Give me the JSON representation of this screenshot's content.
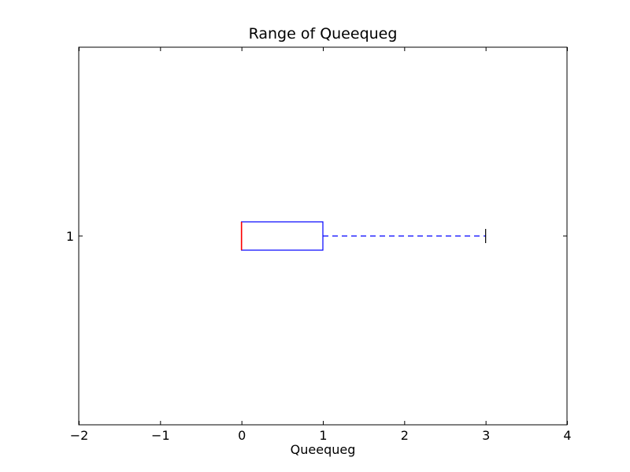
{
  "chart_data": {
    "type": "boxplot",
    "orientation": "horizontal",
    "title": "Range of Queequeg",
    "xlabel": "Queequeg",
    "ylabel": "",
    "xlim": [
      -2,
      4
    ],
    "x_ticks": [
      -2,
      -1,
      0,
      1,
      2,
      3,
      4
    ],
    "x_tick_labels": [
      "−2",
      "−1",
      "0",
      "1",
      "2",
      "3",
      "4"
    ],
    "y_tick_labels": [
      "1"
    ],
    "grid": false,
    "series": [
      {
        "category": "1",
        "min": 0,
        "q1": 0,
        "median": 0,
        "q3": 1,
        "max": 3
      }
    ],
    "colors": {
      "box": "#0000ff",
      "whisker": "#0000ff",
      "median": "#ff0000",
      "cap": "#000000",
      "axes": "#000000"
    }
  }
}
